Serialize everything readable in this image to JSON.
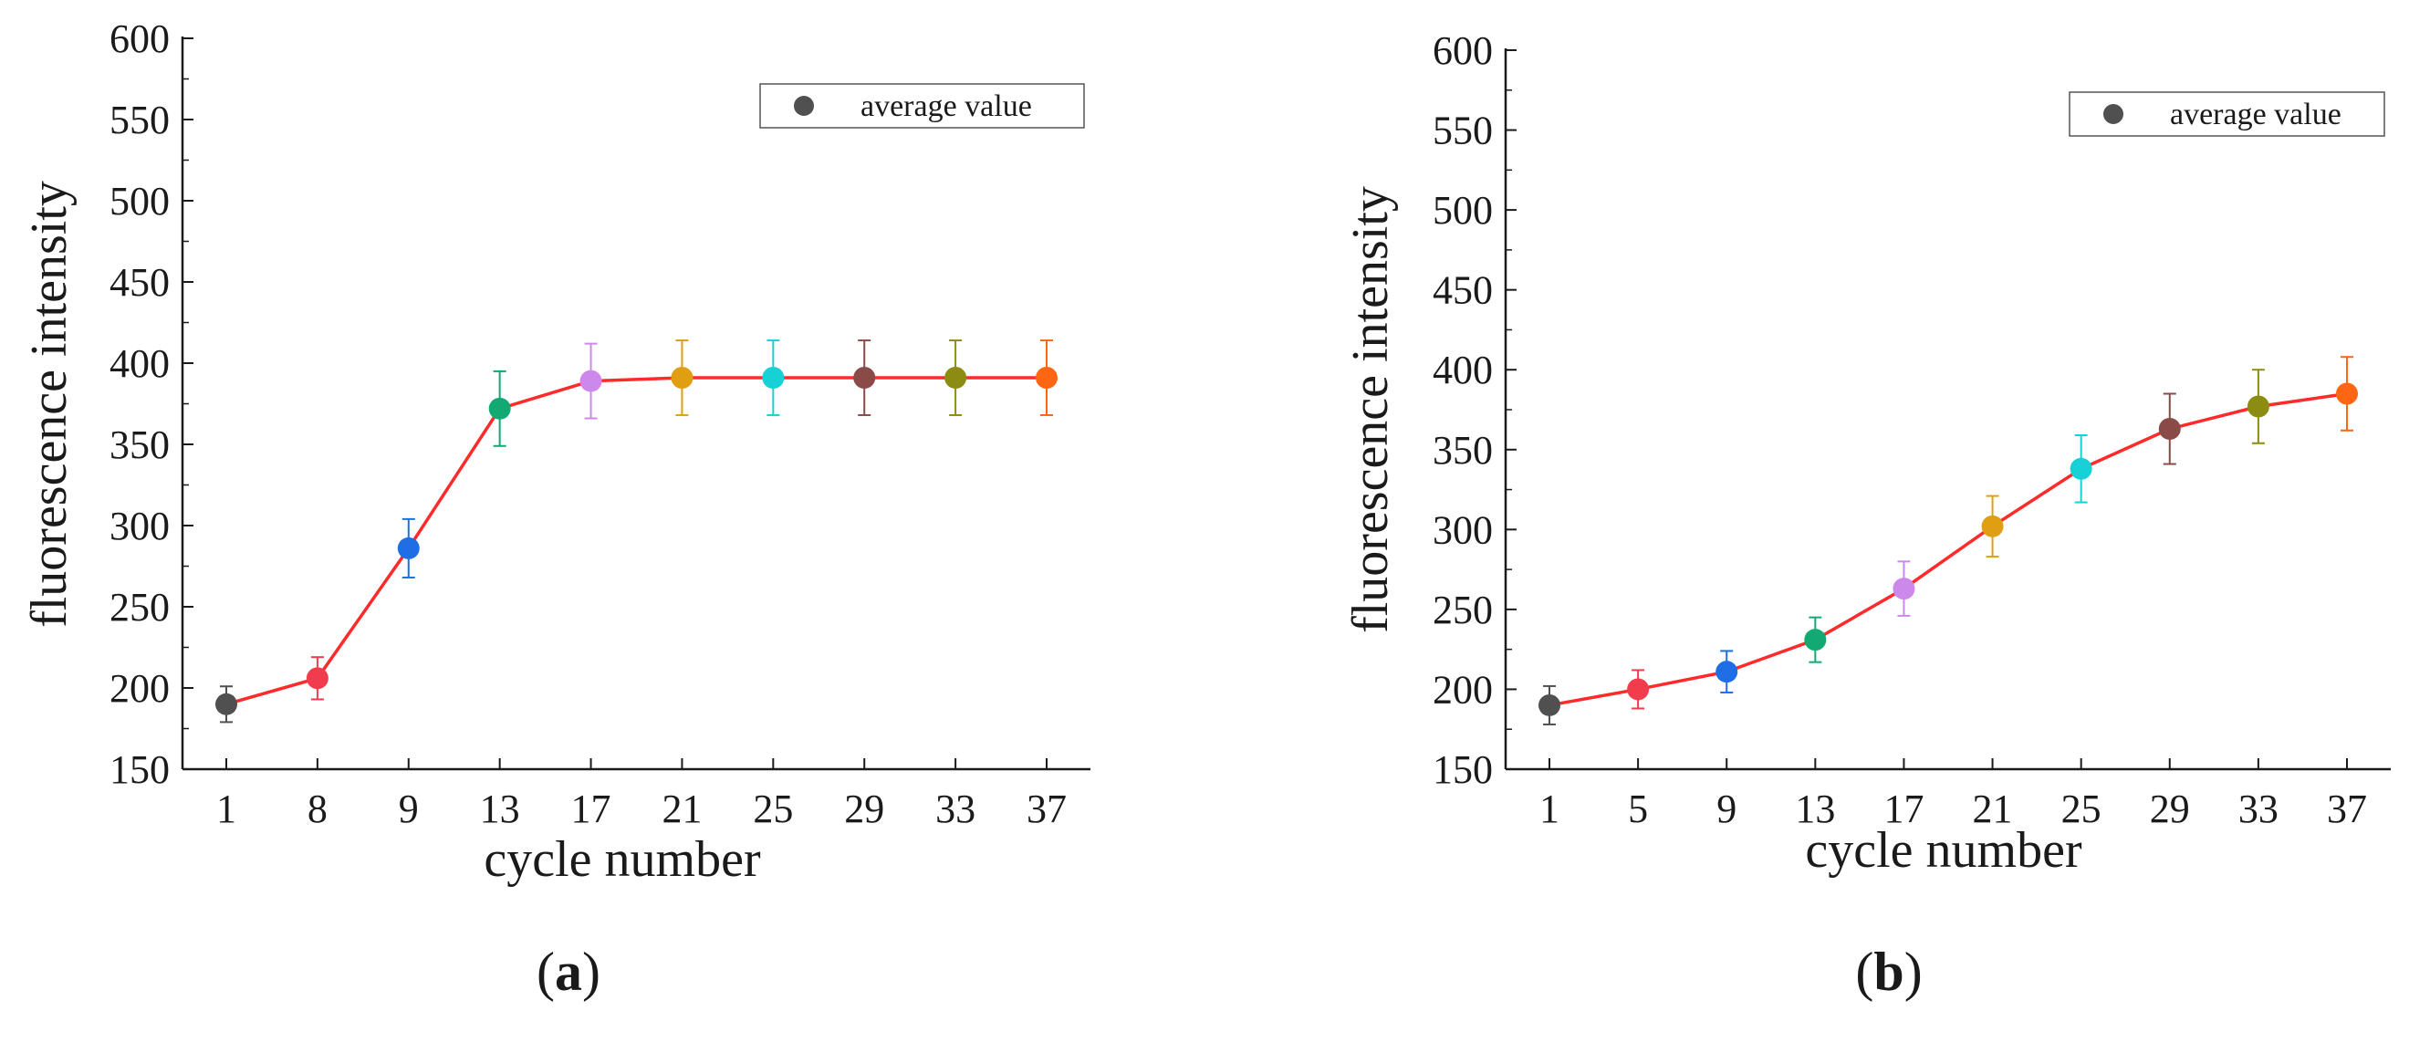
{
  "chart_data": [
    {
      "type": "line",
      "panel": "a",
      "title": "",
      "xlabel": "cycle number",
      "ylabel": "fluorescence intensity",
      "categories": [
        "1",
        "8",
        "9",
        "13",
        "17",
        "21",
        "25",
        "29",
        "33",
        "37"
      ],
      "ylim": [
        150,
        600
      ],
      "yticks": [
        150,
        200,
        250,
        300,
        350,
        400,
        450,
        500,
        550,
        600
      ],
      "series": [
        {
          "name": "average value",
          "line_color": "#ff2a2a",
          "values": [
            190,
            206,
            286,
            372,
            389,
            391,
            391,
            391,
            391,
            391
          ],
          "errors": [
            11,
            13,
            18,
            23,
            23,
            23,
            23,
            23,
            23,
            23
          ],
          "point_colors": [
            "#505050",
            "#f03c4c",
            "#1e6fe6",
            "#12aa72",
            "#cc88ea",
            "#e09e12",
            "#16d2d6",
            "#8a4a48",
            "#8c8c12",
            "#ff6612"
          ]
        }
      ],
      "legend": {
        "label": "average value",
        "marker_color": "#505050",
        "placement": "top-right"
      },
      "grid": false,
      "panel_label": {
        "open": "(",
        "letter": "a",
        "close": ")"
      }
    },
    {
      "type": "line",
      "panel": "b",
      "title": "",
      "xlabel": "cycle number",
      "ylabel": "fluorescence intensity",
      "categories": [
        "1",
        "5",
        "9",
        "13",
        "17",
        "21",
        "25",
        "29",
        "33",
        "37"
      ],
      "ylim": [
        150,
        600
      ],
      "yticks": [
        150,
        200,
        250,
        300,
        350,
        400,
        450,
        500,
        550,
        600
      ],
      "series": [
        {
          "name": "average value",
          "line_color": "#ff2a2a",
          "values": [
            190,
            200,
            211,
            231,
            263,
            302,
            338,
            363,
            377,
            385
          ],
          "errors": [
            12,
            12,
            13,
            14,
            17,
            19,
            21,
            22,
            23,
            23
          ],
          "point_colors": [
            "#505050",
            "#f03c4c",
            "#1e6fe6",
            "#12aa72",
            "#cc88ea",
            "#e09e12",
            "#16d2d6",
            "#8a4a48",
            "#8c8c12",
            "#ff6612"
          ]
        }
      ],
      "legend": {
        "label": "average value",
        "marker_color": "#505050",
        "placement": "top-right"
      },
      "grid": false,
      "panel_label": {
        "open": "(",
        "letter": "b",
        "close": ")"
      }
    }
  ]
}
